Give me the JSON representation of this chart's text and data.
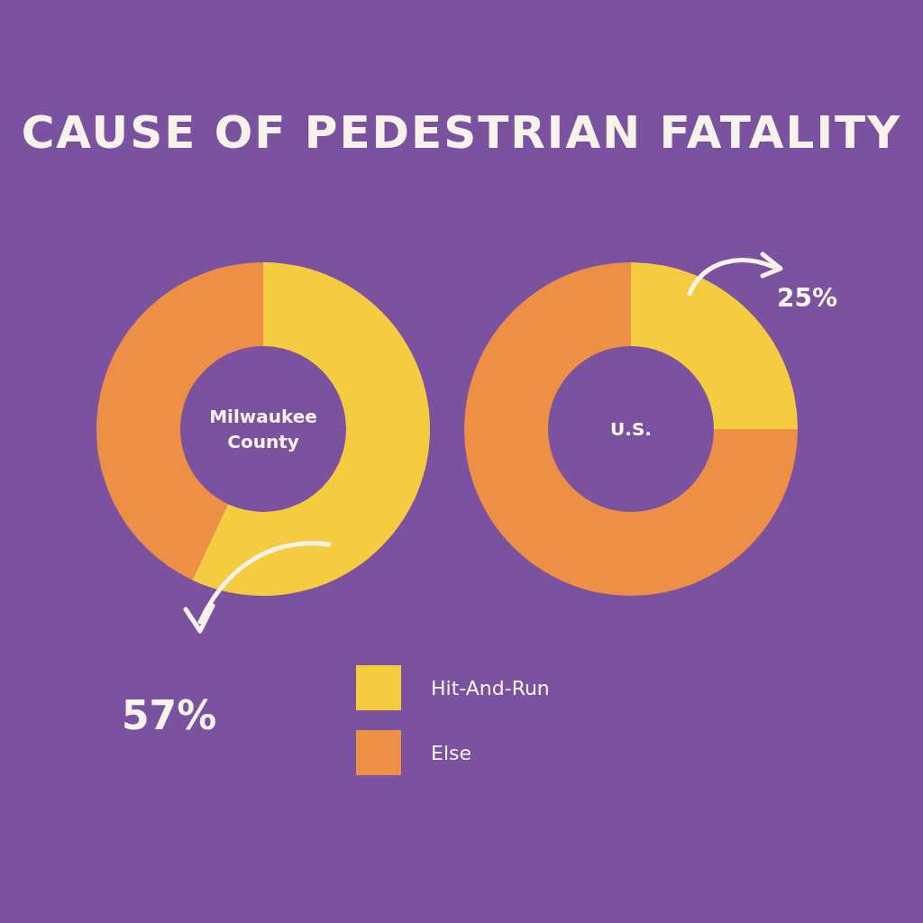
{
  "chart_data": [
    {
      "type": "donut",
      "title": "CAUSE OF PEDESTRIAN FATALITY",
      "categories": [
        "Hit-And-Run",
        "Else"
      ],
      "values": [
        57,
        43
      ],
      "colors": [
        "#f5cc40",
        "#ee8f46"
      ],
      "value_labels": [
        "57%",
        null
      ],
      "annotations": [
        "Milwaukee County"
      ],
      "legend": "bottom"
    },
    {
      "type": "donut",
      "categories": [
        null,
        null
      ],
      "values": [
        25,
        75
      ],
      "colors": [
        "#f5cc40",
        "#ee8f46"
      ],
      "value_labels": [
        "25%",
        null
      ],
      "annotations": [
        "U.S."
      ]
    }
  ]
}
